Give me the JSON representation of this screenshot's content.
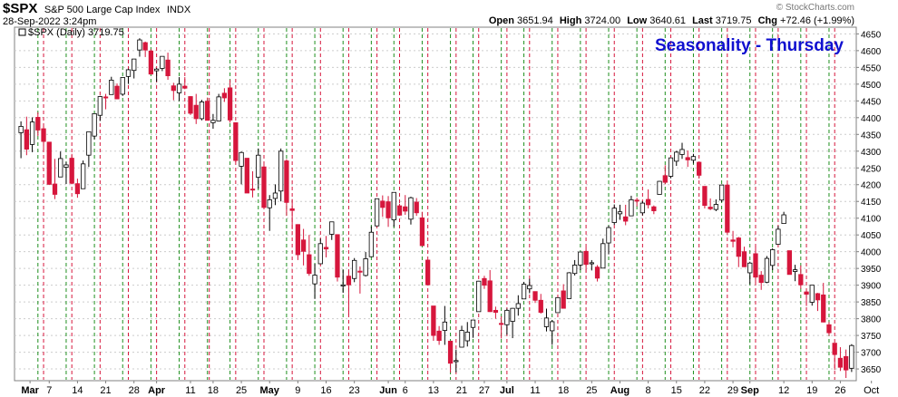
{
  "header": {
    "symbol": "$SPX",
    "name": "S&P 500 Large Cap Index",
    "exchange": "INDX",
    "date": "28-Sep-2022 3:24pm",
    "open_label": "Open",
    "open": "3651.94",
    "high_label": "High",
    "high": "3724.00",
    "low_label": "Low",
    "low": "3640.61",
    "last_label": "Last",
    "last": "3719.75",
    "chg_label": "Chg",
    "chg": "+72.46 (+1.99%)",
    "watermark": "© StockCharts.com",
    "legend": "$SPX (Daily) 3719.75"
  },
  "colors": {
    "up": "#ffffff",
    "down": "#d6163c",
    "thursday": "#1e8f1e",
    "friday": "#d6163c",
    "title": "#1010d0"
  },
  "chart_data": {
    "type": "candlestick",
    "title": "Seasonality - Thursday",
    "x_tick_labels": [
      "Mar",
      "7",
      "14",
      "21",
      "28",
      "Apr",
      "11",
      "18",
      "25",
      "May",
      "9",
      "16",
      "23",
      "Jun",
      "6",
      "13",
      "21",
      "27",
      "Jul",
      "11",
      "18",
      "25",
      "Aug",
      "8",
      "15",
      "22",
      "29",
      "Sep",
      "12",
      "19",
      "26",
      "Oct"
    ],
    "y_ticks": [
      3650,
      3700,
      3750,
      3800,
      3850,
      3900,
      3950,
      4000,
      4050,
      4100,
      4150,
      4200,
      4250,
      4300,
      4350,
      4400,
      4450,
      4500,
      4550,
      4600,
      4650
    ],
    "ylim": [
      3615,
      4670
    ],
    "grid": true,
    "y_axis": "right",
    "candles": [
      [
        "Feb 28",
        4355,
        4389,
        4279,
        4374
      ],
      [
        "Mar 1",
        4364,
        4403,
        4288,
        4306
      ],
      [
        "Mar 2",
        4320,
        4401,
        4297,
        4387
      ],
      [
        "Mar 3",
        4401,
        4416,
        4345,
        4363
      ],
      [
        "Mar 4",
        4367,
        4375,
        4299,
        4329
      ],
      [
        "Mar 7",
        4327,
        4327,
        4199,
        4201
      ],
      [
        "Mar 8",
        4202,
        4277,
        4157,
        4171
      ],
      [
        "Mar 9",
        4223,
        4299,
        4223,
        4278
      ],
      [
        "Mar 10",
        4252,
        4268,
        4202,
        4259
      ],
      [
        "Mar 11",
        4279,
        4292,
        4201,
        4204
      ],
      [
        "Mar 14",
        4203,
        4218,
        4161,
        4173
      ],
      [
        "Mar 15",
        4188,
        4272,
        4188,
        4262
      ],
      [
        "Mar 16",
        4288,
        4358,
        4253,
        4358
      ],
      [
        "Mar 17",
        4345,
        4412,
        4335,
        4412
      ],
      [
        "Mar 18",
        4407,
        4465,
        4390,
        4463
      ],
      [
        "Mar 21",
        4462,
        4471,
        4425,
        4461
      ],
      [
        "Mar 22",
        4469,
        4522,
        4469,
        4512
      ],
      [
        "Mar 23",
        4494,
        4502,
        4455,
        4456
      ],
      [
        "Mar 24",
        4470,
        4521,
        4465,
        4520
      ],
      [
        "Mar 25",
        4523,
        4546,
        4501,
        4543
      ],
      [
        "Mar 28",
        4541,
        4575,
        4517,
        4575
      ],
      [
        "Mar 29",
        4602,
        4637,
        4582,
        4632
      ],
      [
        "Mar 30",
        4624,
        4627,
        4581,
        4602
      ],
      [
        "Mar 31",
        4599,
        4604,
        4530,
        4530
      ],
      [
        "Apr 1",
        4540,
        4548,
        4507,
        4545
      ],
      [
        "Apr 4",
        4547,
        4583,
        4539,
        4583
      ],
      [
        "Apr 5",
        4572,
        4594,
        4513,
        4525
      ],
      [
        "Apr 6",
        4495,
        4504,
        4452,
        4481
      ],
      [
        "Apr 7",
        4474,
        4521,
        4450,
        4500
      ],
      [
        "Apr 8",
        4494,
        4521,
        4485,
        4488
      ],
      [
        "Apr 11",
        4463,
        4464,
        4408,
        4413
      ],
      [
        "Apr 12",
        4437,
        4471,
        4381,
        4397
      ],
      [
        "Apr 13",
        4397,
        4453,
        4392,
        4447
      ],
      [
        "Apr 14",
        4449,
        4460,
        4392,
        4392
      ],
      [
        "Apr 18",
        4385,
        4411,
        4367,
        4392
      ],
      [
        "Apr 19",
        4390,
        4471,
        4389,
        4462
      ],
      [
        "Apr 20",
        4473,
        4488,
        4447,
        4459
      ],
      [
        "Apr 21",
        4489,
        4513,
        4385,
        4393
      ],
      [
        "Apr 22",
        4385,
        4386,
        4267,
        4272
      ],
      [
        "Apr 25",
        4255,
        4299,
        4201,
        4296
      ],
      [
        "Apr 26",
        4279,
        4279,
        4175,
        4175
      ],
      [
        "Apr 27",
        4187,
        4240,
        4162,
        4184
      ],
      [
        "Apr 28",
        4222,
        4308,
        4188,
        4288
      ],
      [
        "Apr 29",
        4253,
        4269,
        4128,
        4132
      ],
      [
        "May 2",
        4131,
        4169,
        4062,
        4155
      ],
      [
        "May 3",
        4159,
        4201,
        4139,
        4175
      ],
      [
        "May 4",
        4181,
        4308,
        4150,
        4300
      ],
      [
        "May 5",
        4271,
        4276,
        4107,
        4147
      ],
      [
        "May 6",
        4128,
        4157,
        4067,
        4123
      ],
      [
        "May 9",
        4081,
        4082,
        3975,
        3991
      ],
      [
        "May 10",
        4035,
        4068,
        3959,
        4001
      ],
      [
        "May 11",
        3991,
        4050,
        3928,
        3935
      ],
      [
        "May 12",
        3904,
        3964,
        3859,
        3930
      ],
      [
        "May 13",
        3964,
        4039,
        3963,
        4024
      ],
      [
        "May 16",
        4013,
        4047,
        3983,
        4008
      ],
      [
        "May 17",
        4052,
        4089,
        4035,
        4089
      ],
      [
        "May 18",
        4051,
        4052,
        3911,
        3924
      ],
      [
        "May 19",
        3900,
        3946,
        3877,
        3901
      ],
      [
        "May 20",
        3927,
        3944,
        3811,
        3901
      ],
      [
        "May 23",
        3920,
        3981,
        3909,
        3974
      ],
      [
        "May 24",
        3942,
        3956,
        3875,
        3941
      ],
      [
        "May 25",
        3929,
        3999,
        3926,
        3979
      ],
      [
        "May 26",
        3985,
        4076,
        3985,
        4058
      ],
      [
        "May 27",
        4077,
        4158,
        4077,
        4158
      ],
      [
        "May 31",
        4151,
        4168,
        4104,
        4132
      ],
      [
        "Jun 1",
        4149,
        4166,
        4074,
        4101
      ],
      [
        "Jun 2",
        4095,
        4177,
        4074,
        4177
      ],
      [
        "Jun 3",
        4137,
        4143,
        4107,
        4109
      ],
      [
        "Jun 6",
        4134,
        4169,
        4110,
        4121
      ],
      [
        "Jun 7",
        4097,
        4164,
        4081,
        4161
      ],
      [
        "Jun 8",
        4148,
        4160,
        4107,
        4116
      ],
      [
        "Jun 9",
        4101,
        4119,
        4017,
        4018
      ],
      [
        "Jun 10",
        3975,
        3975,
        3901,
        3901
      ],
      [
        "Jun 13",
        3838,
        3838,
        3734,
        3750
      ],
      [
        "Jun 14",
        3763,
        3778,
        3722,
        3735
      ],
      [
        "Jun 15",
        3765,
        3838,
        3722,
        3790
      ],
      [
        "Jun 16",
        3733,
        3733,
        3639,
        3667
      ],
      [
        "Jun 17",
        3675,
        3708,
        3640,
        3675
      ],
      [
        "Jun 21",
        3715,
        3779,
        3715,
        3765
      ],
      [
        "Jun 22",
        3734,
        3790,
        3717,
        3760
      ],
      [
        "Jun 23",
        3774,
        3796,
        3743,
        3796
      ],
      [
        "Jun 24",
        3821,
        3913,
        3821,
        3912
      ],
      [
        "Jun 27",
        3920,
        3928,
        3889,
        3900
      ],
      [
        "Jun 28",
        3913,
        3945,
        3820,
        3821
      ],
      [
        "Jun 29",
        3825,
        3836,
        3800,
        3819
      ],
      [
        "Jun 30",
        3786,
        3807,
        3741,
        3785
      ],
      [
        "Jul 1",
        3782,
        3830,
        3752,
        3825
      ],
      [
        "Jul 5",
        3792,
        3832,
        3742,
        3831
      ],
      [
        "Jul 6",
        3831,
        3870,
        3809,
        3845
      ],
      [
        "Jul 7",
        3859,
        3910,
        3859,
        3903
      ],
      [
        "Jul 8",
        3889,
        3919,
        3876,
        3899
      ],
      [
        "Jul 11",
        3881,
        3881,
        3847,
        3855
      ],
      [
        "Jul 12",
        3855,
        3874,
        3815,
        3819
      ],
      [
        "Jul 13",
        3776,
        3830,
        3762,
        3802
      ],
      [
        "Jul 14",
        3764,
        3796,
        3722,
        3791
      ],
      [
        "Jul 15",
        3818,
        3863,
        3818,
        3863
      ],
      [
        "Jul 18",
        3883,
        3903,
        3831,
        3831
      ],
      [
        "Jul 19",
        3860,
        3939,
        3860,
        3937
      ],
      [
        "Jul 20",
        3935,
        3975,
        3929,
        3960
      ],
      [
        "Jul 21",
        3960,
        4000,
        3945,
        3999
      ],
      [
        "Jul 22",
        4001,
        4013,
        3938,
        3962
      ],
      [
        "Jul 25",
        3965,
        3975,
        3944,
        3967
      ],
      [
        "Jul 26",
        3954,
        3960,
        3911,
        3921
      ],
      [
        "Jul 27",
        3951,
        4039,
        3951,
        4024
      ],
      [
        "Jul 28",
        4026,
        4078,
        3992,
        4072
      ],
      [
        "Jul 29",
        4087,
        4141,
        4080,
        4130
      ],
      [
        "Aug 1",
        4113,
        4140,
        4095,
        4119
      ],
      [
        "Aug 2",
        4104,
        4140,
        4079,
        4091
      ],
      [
        "Aug 3",
        4107,
        4167,
        4107,
        4155
      ],
      [
        "Aug 4",
        4154,
        4161,
        4135,
        4152
      ],
      [
        "Aug 5",
        4116,
        4151,
        4108,
        4145
      ],
      [
        "Aug 8",
        4156,
        4186,
        4129,
        4140
      ],
      [
        "Aug 9",
        4134,
        4138,
        4112,
        4122
      ],
      [
        "Aug 10",
        4171,
        4211,
        4171,
        4210
      ],
      [
        "Aug 11",
        4227,
        4258,
        4201,
        4207
      ],
      [
        "Aug 12",
        4225,
        4280,
        4219,
        4280
      ],
      [
        "Aug 15",
        4270,
        4301,
        4256,
        4297
      ],
      [
        "Aug 16",
        4290,
        4325,
        4277,
        4305
      ],
      [
        "Aug 17",
        4281,
        4302,
        4253,
        4274
      ],
      [
        "Aug 18",
        4273,
        4292,
        4263,
        4284
      ],
      [
        "Aug 19",
        4267,
        4267,
        4218,
        4228
      ],
      [
        "Aug 22",
        4195,
        4195,
        4129,
        4138
      ],
      [
        "Aug 23",
        4133,
        4159,
        4124,
        4128
      ],
      [
        "Aug 24",
        4126,
        4156,
        4121,
        4141
      ],
      [
        "Aug 25",
        4154,
        4200,
        4148,
        4199
      ],
      [
        "Aug 26",
        4199,
        4203,
        4057,
        4058
      ],
      [
        "Aug 29",
        4035,
        4062,
        4013,
        4031
      ],
      [
        "Aug 30",
        4041,
        4044,
        3954,
        3986
      ],
      [
        "Aug 31",
        4000,
        4015,
        3954,
        3955
      ],
      [
        "Sep 1",
        3937,
        3970,
        3903,
        3966
      ],
      [
        "Sep 2",
        3994,
        4018,
        3906,
        3924
      ],
      [
        "Sep 6",
        3930,
        3942,
        3886,
        3908
      ],
      [
        "Sep 7",
        3909,
        3987,
        3906,
        3980
      ],
      [
        "Sep 8",
        3959,
        4010,
        3945,
        4006
      ],
      [
        "Sep 9",
        4022,
        4077,
        4022,
        4067
      ],
      [
        "Sep 12",
        4084,
        4119,
        4083,
        4110
      ],
      [
        "Sep 13",
        4003,
        4003,
        3932,
        3932
      ],
      [
        "Sep 14",
        3941,
        3961,
        3912,
        3946
      ],
      [
        "Sep 15",
        3932,
        3959,
        3889,
        3901
      ],
      [
        "Sep 16",
        3880,
        3880,
        3838,
        3873
      ],
      [
        "Sep 19",
        3849,
        3900,
        3839,
        3900
      ],
      [
        "Sep 20",
        3875,
        3877,
        3823,
        3856
      ],
      [
        "Sep 21",
        3871,
        3907,
        3789,
        3790
      ],
      [
        "Sep 22",
        3782,
        3790,
        3749,
        3758
      ],
      [
        "Sep 23",
        3727,
        3727,
        3647,
        3693
      ],
      [
        "Sep 26",
        3682,
        3715,
        3644,
        3655
      ],
      [
        "Sep 27",
        3687,
        3708,
        3623,
        3647
      ],
      [
        "Sep 28",
        3652,
        3724,
        3641,
        3720
      ]
    ],
    "thursday_dates": [
      "Mar 3",
      "Mar 10",
      "Mar 17",
      "Mar 24",
      "Mar 31",
      "Apr 7",
      "Apr 14",
      "Apr 21",
      "Apr 28",
      "May 5",
      "May 12",
      "May 19",
      "May 26",
      "Jun 2",
      "Jun 9",
      "Jun 16",
      "Jun 23",
      "Jun 30",
      "Jul 7",
      "Jul 14",
      "Jul 21",
      "Jul 28",
      "Aug 4",
      "Aug 11",
      "Aug 18",
      "Aug 25",
      "Sep 1",
      "Sep 8",
      "Sep 15",
      "Sep 22"
    ],
    "friday_dates": [
      "Mar 4",
      "Mar 11",
      "Mar 18",
      "Mar 25",
      "Apr 1",
      "Apr 8",
      "Apr 14",
      "Apr 22",
      "Apr 29",
      "May 6",
      "May 13",
      "May 20",
      "May 27",
      "Jun 3",
      "Jun 10",
      "Jun 17",
      "Jun 24",
      "Jul 1",
      "Jul 8",
      "Jul 15",
      "Jul 22",
      "Jul 29",
      "Aug 5",
      "Aug 12",
      "Aug 19",
      "Aug 26",
      "Sep 2",
      "Sep 9",
      "Sep 16",
      "Sep 23"
    ]
  }
}
